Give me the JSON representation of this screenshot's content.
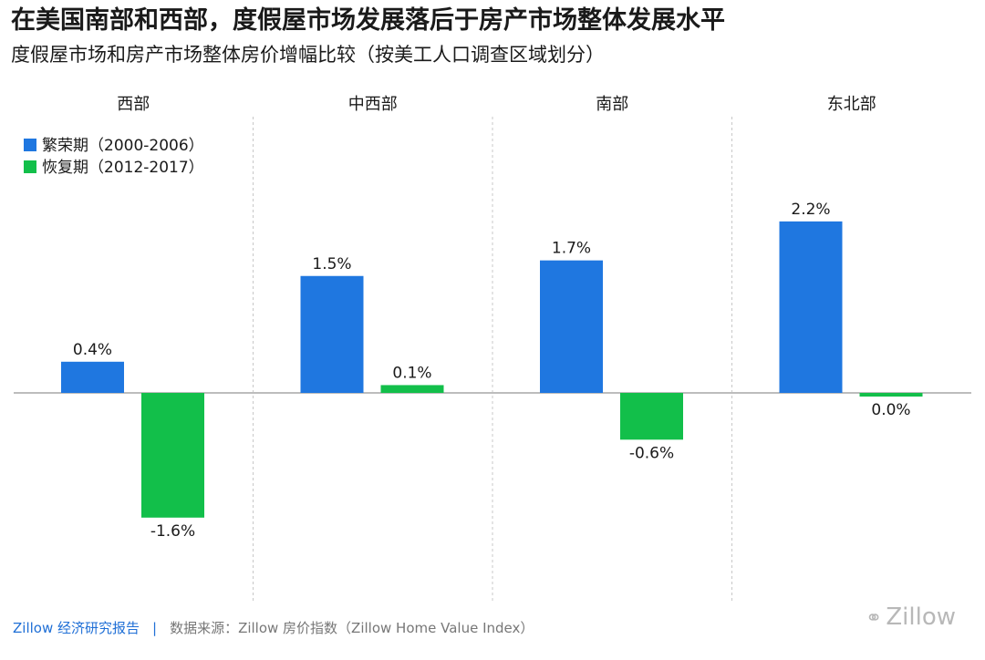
{
  "header": {
    "title": "在美国南部和西部，度假屋市场发展落后于房产市场整体发展水平",
    "subtitle": "度假屋市场和房产市场整体房价增幅比较（按美工人口调查区域划分）"
  },
  "chart_data": {
    "type": "bar",
    "panels": [
      "西部",
      "中西部",
      "南部",
      "东北部"
    ],
    "series": [
      {
        "name": "繁荣期（2000-2006）",
        "color": "#1f77e0",
        "values": [
          0.4,
          1.5,
          1.7,
          2.2
        ],
        "labels": [
          "0.4%",
          "1.5%",
          "1.7%",
          "2.2%"
        ]
      },
      {
        "name": "恢复期（2012-2017）",
        "color": "#12bf4a",
        "values": [
          -1.6,
          0.1,
          -0.6,
          0.0
        ],
        "labels": [
          "-1.6%",
          "0.1%",
          "-0.6%",
          "0.0%"
        ]
      }
    ],
    "ylim": [
      -1.8,
      2.4
    ],
    "grid": false,
    "legend": "top-left"
  },
  "footer": {
    "brand": "Zillow 经济研究报告",
    "separator": "|",
    "source": "数据来源：Zillow 房价指数（Zillow Home Value Index）"
  },
  "watermark": {
    "text": "Zillow",
    "icon": "wechat-icon"
  }
}
